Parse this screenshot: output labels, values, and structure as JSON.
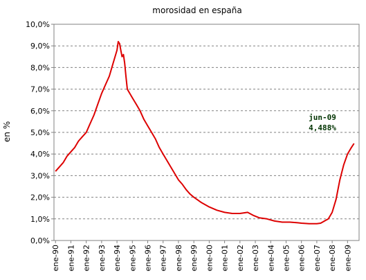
{
  "chart_data": {
    "type": "line",
    "title": "morosidad en españa",
    "xlabel": "",
    "ylabel": "en %",
    "ylim": [
      0,
      10
    ],
    "y_ticks": [
      "0,0%",
      "1,0%",
      "2,0%",
      "3,0%",
      "4,0%",
      "5,0%",
      "6,0%",
      "7,0%",
      "8,0%",
      "9,0%",
      "10,0%"
    ],
    "x_ticks": [
      "ene-90",
      "ene-91",
      "ene-92",
      "ene-93",
      "ene-94",
      "ene-95",
      "ene-96",
      "ene-97",
      "ene-98",
      "ene-99",
      "ene-00",
      "ene-01",
      "ene-02",
      "ene-03",
      "ene-04",
      "ene-05",
      "ene-06",
      "ene-07",
      "ene-08",
      "ene-09"
    ],
    "grid": true,
    "line_color": "#dd0000",
    "annotation": {
      "label": "jun-09",
      "value_label": "4,488%",
      "color": "#003300"
    },
    "series": [
      {
        "x": [
          1990.0,
          1990.25,
          1990.5,
          1990.75,
          1991.0,
          1991.25,
          1991.5,
          1991.75,
          1992.0,
          1992.25,
          1992.5,
          1992.75,
          1993.0,
          1993.25,
          1993.5,
          1993.75,
          1994.0,
          1994.08,
          1994.17,
          1994.25,
          1994.33,
          1994.42,
          1994.5,
          1994.58,
          1994.67,
          1994.75,
          1995.0,
          1995.25,
          1995.5,
          1995.75,
          1996.0,
          1996.25,
          1996.5,
          1996.75,
          1997.0,
          1997.25,
          1997.5,
          1997.75,
          1998.0,
          1998.25,
          1998.5,
          1998.75,
          1999.0,
          1999.5,
          2000.0,
          2000.5,
          2001.0,
          2001.5,
          2002.0,
          2002.5,
          2002.9,
          2003.25,
          2003.75,
          2004.25,
          2004.75,
          2005.25,
          2005.75,
          2006.0,
          2006.5,
          2007.0,
          2007.25,
          2007.5,
          2007.75,
          2008.0,
          2008.25,
          2008.5,
          2008.75,
          2009.0,
          2009.25,
          2009.42
        ],
        "values": [
          3.2,
          3.4,
          3.6,
          3.9,
          4.1,
          4.3,
          4.6,
          4.8,
          5.0,
          5.4,
          5.8,
          6.3,
          6.8,
          7.2,
          7.6,
          8.2,
          8.8,
          9.2,
          9.1,
          8.8,
          8.5,
          8.6,
          8.2,
          7.6,
          7.0,
          6.9,
          6.6,
          6.3,
          6.0,
          5.6,
          5.3,
          5.0,
          4.7,
          4.3,
          4.0,
          3.7,
          3.4,
          3.1,
          2.8,
          2.6,
          2.35,
          2.15,
          2.0,
          1.75,
          1.55,
          1.4,
          1.3,
          1.25,
          1.25,
          1.3,
          1.15,
          1.05,
          1.0,
          0.9,
          0.85,
          0.85,
          0.82,
          0.8,
          0.78,
          0.78,
          0.8,
          0.9,
          1.0,
          1.3,
          1.9,
          2.8,
          3.5,
          4.0,
          4.3,
          4.488
        ]
      }
    ]
  }
}
